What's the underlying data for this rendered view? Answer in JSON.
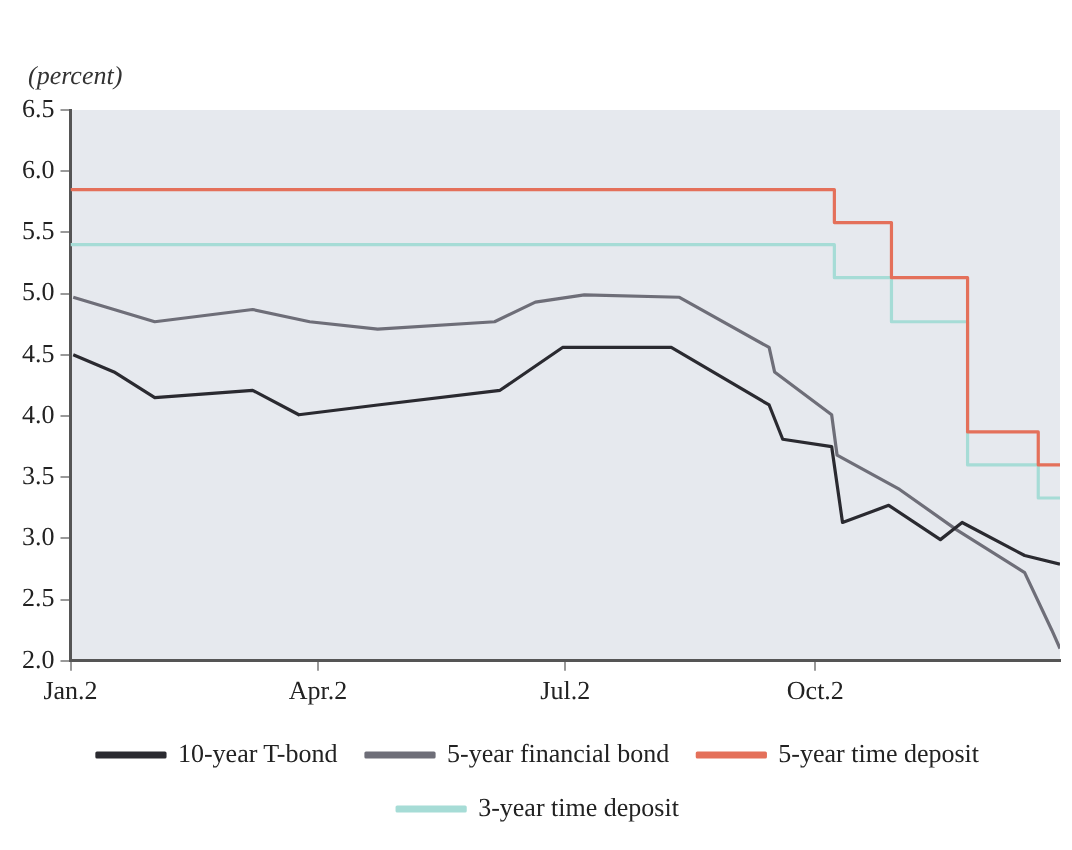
{
  "chart_data": {
    "type": "line",
    "ylabel": "(percent)",
    "xlim": [
      "--01-02",
      "--12-31"
    ],
    "xticks": [
      {
        "value": "--01-02",
        "label": "Jan.2"
      },
      {
        "value": "--04-02",
        "label": "Apr.2"
      },
      {
        "value": "--07-02",
        "label": "Jul.2"
      },
      {
        "value": "--10-02",
        "label": "Oct.2"
      }
    ],
    "ylim": [
      2.0,
      6.5
    ],
    "yticks": [
      {
        "value": 2,
        "label": "2.0"
      },
      {
        "value": 2.5,
        "label": "2.5"
      },
      {
        "value": 3,
        "label": "3.0"
      },
      {
        "value": 3.5,
        "label": "3.5"
      },
      {
        "value": 4,
        "label": "4.0"
      },
      {
        "value": 4.5,
        "label": "4.5"
      },
      {
        "value": 5,
        "label": "5.0"
      },
      {
        "value": 5.5,
        "label": "5.5"
      },
      {
        "value": 6,
        "label": "6.0"
      },
      {
        "value": 6.5,
        "label": "6.5"
      }
    ],
    "grid": false,
    "legend": "bottom",
    "marker": "none",
    "line_style": "solid",
    "series": [
      {
        "name": "10-year T-bond",
        "color": "#2a2a30",
        "x": [
          "--01-03",
          "--01-18",
          "--02-02",
          "--03-09",
          "--03-26",
          "--04-24",
          "--06-08",
          "--07-01",
          "--08-10",
          "--09-15",
          "--09-20",
          "--10-08",
          "--10-12",
          "--10-29",
          "--11-17",
          "--11-25",
          "--12-18",
          "--12-31"
        ],
        "values": [
          4.5,
          4.36,
          4.15,
          4.21,
          4.01,
          4.09,
          4.21,
          4.56,
          4.56,
          4.09,
          3.81,
          3.75,
          3.13,
          3.27,
          2.99,
          3.13,
          2.86,
          2.79
        ]
      },
      {
        "name": "5-year financial bond",
        "color": "#6e6e78",
        "x": [
          "--01-03",
          "--02-02",
          "--03-09",
          "--03-30",
          "--04-24",
          "--06-06",
          "--06-21",
          "--07-09",
          "--08-13",
          "--09-15",
          "--09-17",
          "--10-08",
          "--10-10",
          "--11-02",
          "--11-23",
          "--12-18",
          "--12-28",
          "--12-31"
        ],
        "values": [
          4.97,
          4.77,
          4.87,
          4.77,
          4.71,
          4.77,
          4.93,
          4.99,
          4.97,
          4.56,
          4.36,
          4.01,
          3.68,
          3.4,
          3.07,
          2.72,
          2.25,
          2.1
        ]
      },
      {
        "name": "5-year time deposit",
        "type": "step",
        "color": "#e4705a",
        "x": [
          "--01-02",
          "--10-09",
          "--10-30",
          "--11-27",
          "--12-23",
          "--12-31"
        ],
        "values": [
          5.85,
          5.58,
          5.13,
          3.87,
          3.6,
          3.6
        ]
      },
      {
        "name": "3-year time deposit",
        "type": "step",
        "color": "#a6dcd6",
        "x": [
          "--01-02",
          "--10-09",
          "--10-30",
          "--11-27",
          "--12-23",
          "--12-31"
        ],
        "values": [
          5.4,
          5.13,
          4.77,
          3.6,
          3.33,
          3.33
        ]
      }
    ]
  }
}
